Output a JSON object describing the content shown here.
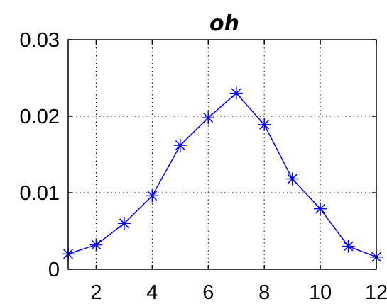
{
  "chart_data": {
    "type": "line",
    "title": "oh",
    "xlabel": "",
    "ylabel": "",
    "x": [
      1,
      2,
      3,
      4,
      5,
      6,
      7,
      8,
      9,
      10,
      11,
      12
    ],
    "series": [
      {
        "values": [
          0.002,
          0.0032,
          0.006,
          0.0096,
          0.0162,
          0.0198,
          0.023,
          0.0189,
          0.0118,
          0.0079,
          0.003,
          0.0016
        ],
        "color": "#0000ff",
        "marker": "asterisk"
      }
    ],
    "xlim": [
      1,
      12
    ],
    "ylim": [
      0,
      0.03
    ],
    "xticks": [
      2,
      4,
      6,
      8,
      10,
      12
    ],
    "xtick_labels": [
      "2",
      "4",
      "6",
      "8",
      "10",
      "12"
    ],
    "yticks": [
      0,
      0.01,
      0.02,
      0.03
    ],
    "ytick_labels": [
      "0",
      "0.01",
      "0.02",
      "0.03"
    ],
    "grid": true,
    "grid_style": "dotted"
  }
}
